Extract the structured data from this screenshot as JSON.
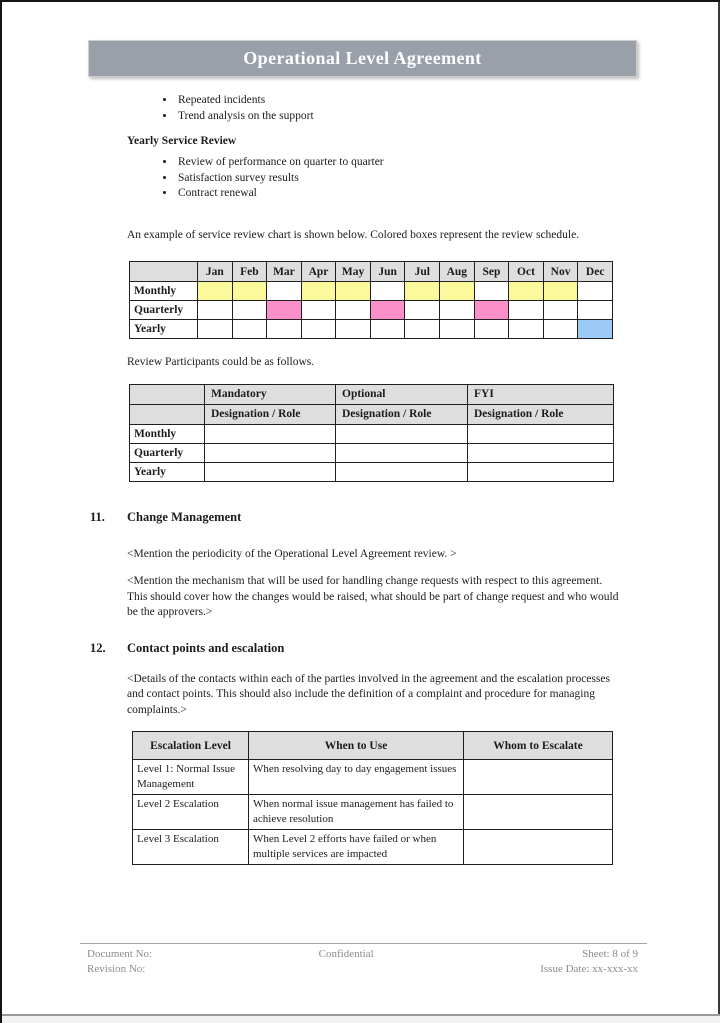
{
  "banner": {
    "title": "Operational Level Agreement",
    "bg_color": "#9aa0a9"
  },
  "intro_bullets": [
    "Repeated incidents",
    "Trend analysis on the support"
  ],
  "yearly_review": {
    "heading": "Yearly Service Review",
    "bullets": [
      "Review of performance on quarter to quarter",
      "Satisfaction survey results",
      "Contract renewal"
    ]
  },
  "schedule": {
    "intro": "An example of service review chart is shown below. Colored boxes represent the review schedule.",
    "months": [
      "Jan",
      "Feb",
      "Mar",
      "Apr",
      "May",
      "Jun",
      "Jul",
      "Aug",
      "Sep",
      "Oct",
      "Nov",
      "Dec"
    ],
    "header_bg": "#dedede",
    "rows": [
      {
        "label": "Monthly",
        "color": "#fbf99c",
        "marked": [
          1,
          1,
          0,
          1,
          1,
          0,
          1,
          1,
          0,
          1,
          1,
          0
        ]
      },
      {
        "label": "Quarterly",
        "color": "#fb8fc9",
        "marked": [
          0,
          0,
          1,
          0,
          0,
          1,
          0,
          0,
          1,
          0,
          0,
          0
        ]
      },
      {
        "label": "Yearly",
        "color": "#9ccaf7",
        "marked": [
          0,
          0,
          0,
          0,
          0,
          0,
          0,
          0,
          0,
          0,
          0,
          1
        ]
      }
    ]
  },
  "participants": {
    "intro": "Review Participants could be as follows.",
    "col_headers": [
      "Mandatory",
      "Optional",
      "FYI"
    ],
    "sub_header": "Designation / Role",
    "row_labels": [
      "Monthly",
      "Quarterly",
      "Yearly"
    ]
  },
  "sections": [
    {
      "number": "11.",
      "title": "Change Management",
      "paragraphs": [
        "<Mention the periodicity of the Operational Level Agreement review. >",
        "<Mention the mechanism that will be used for handling change requests with respect to this agreement. This should cover how the changes would be raised, what should be part of change request and who would be the approvers.>"
      ]
    },
    {
      "number": "12.",
      "title": "Contact points and escalation",
      "paragraphs": [
        "<Details of the contacts within each of the parties involved in the agreement and the escalation processes and contact points. This should also include the definition of a complaint and procedure for managing complaints.>"
      ]
    }
  ],
  "escalation": {
    "headers": [
      "Escalation Level",
      "When to Use",
      "Whom to Escalate"
    ],
    "rows": [
      {
        "level": "Level 1: Normal Issue Management",
        "when": "When resolving day to day engagement issues",
        "whom": ""
      },
      {
        "level": "Level 2 Escalation",
        "when": "When normal issue management has failed to achieve resolution",
        "whom": ""
      },
      {
        "level": "Level 3 Escalation",
        "when": "When Level 2 efforts have failed or when multiple services are impacted",
        "whom": ""
      }
    ]
  },
  "footer": {
    "document_no": "Document No:",
    "revision_no": "Revision No:",
    "confidential": "Confidential",
    "sheet": "Sheet: 8 of 9",
    "issue_date": "Issue Date: xx-xxx-xx"
  }
}
